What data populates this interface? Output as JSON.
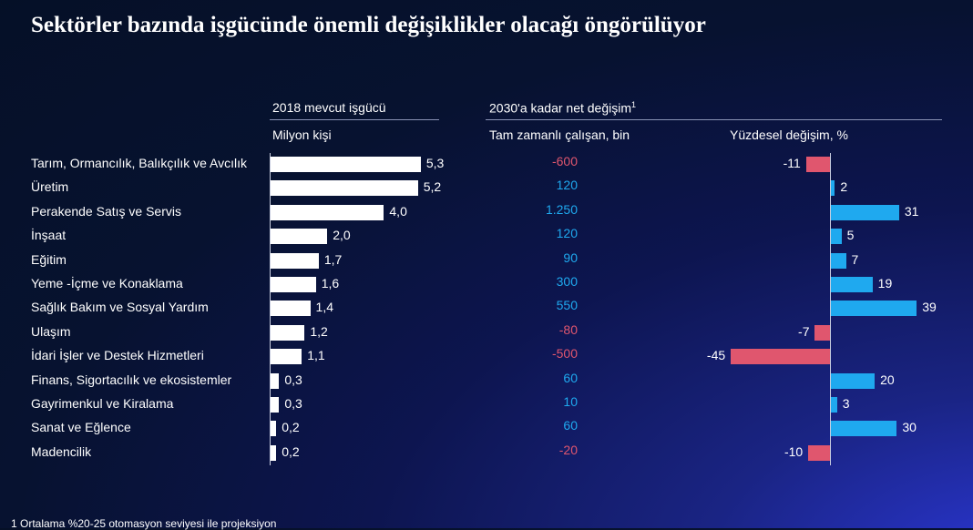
{
  "title": "Sektörler bazında işgücünde önemli değişiklikler olacağı öngörülüyor",
  "colors": {
    "positive": "#1fa9ef",
    "negative": "#e0566e",
    "workforce_bar": "#ffffff"
  },
  "footnote": "1 Ortalama %20-25 otomasyon seviyesi ile projeksiyon",
  "chart_data": {
    "type": "bar",
    "categories": [
      "Tarım, Ormancılık, Balıkçılık ve Avcılık",
      "Üretim",
      "Perakende Satış ve Servis",
      "İnşaat",
      "Eğitim",
      "Yeme -İçme ve Konaklama",
      "Sağlık Bakım ve Sosyal Yardım",
      "Ulaşım",
      "İdari İşler ve Destek Hizmetleri",
      "Finans, Sigortacılık ve ekosistemler",
      "Gayrimenkul ve Kiralama",
      "Sanat ve Eğlence",
      "Madencilik"
    ],
    "workforce": {
      "header": "2018 mevcut işgücü",
      "unit": "Milyon kişi",
      "values": [
        5.3,
        5.2,
        4.0,
        2.0,
        1.7,
        1.6,
        1.4,
        1.2,
        1.1,
        0.3,
        0.3,
        0.2,
        0.2
      ],
      "labels": [
        "5,3",
        "5,2",
        "4,0",
        "2,0",
        "1,7",
        "1,6",
        "1,4",
        "1,2",
        "1,1",
        "0,3",
        "0,3",
        "0,2",
        "0,2"
      ]
    },
    "net_change": {
      "header": "2030'a kadar net değişim",
      "header_sup": "1",
      "unit": "Tam zamanlı çalışan, bin",
      "values": [
        -600,
        120,
        1250,
        120,
        90,
        300,
        550,
        -80,
        -500,
        60,
        10,
        60,
        -20
      ],
      "labels": [
        "-600",
        "120",
        "1.250",
        "120",
        "90",
        "300",
        "550",
        "-80",
        "-500",
        "60",
        "10",
        "60",
        "-20"
      ]
    },
    "pct_change": {
      "unit": "Yüzdesel değişim, %",
      "values": [
        -11,
        2,
        31,
        5,
        7,
        19,
        39,
        -7,
        -45,
        20,
        3,
        30,
        -10
      ],
      "labels": [
        "-11",
        "2",
        "31",
        "5",
        "7",
        "19",
        "39",
        "-7",
        "-45",
        "20",
        "3",
        "30",
        "-10"
      ]
    }
  }
}
